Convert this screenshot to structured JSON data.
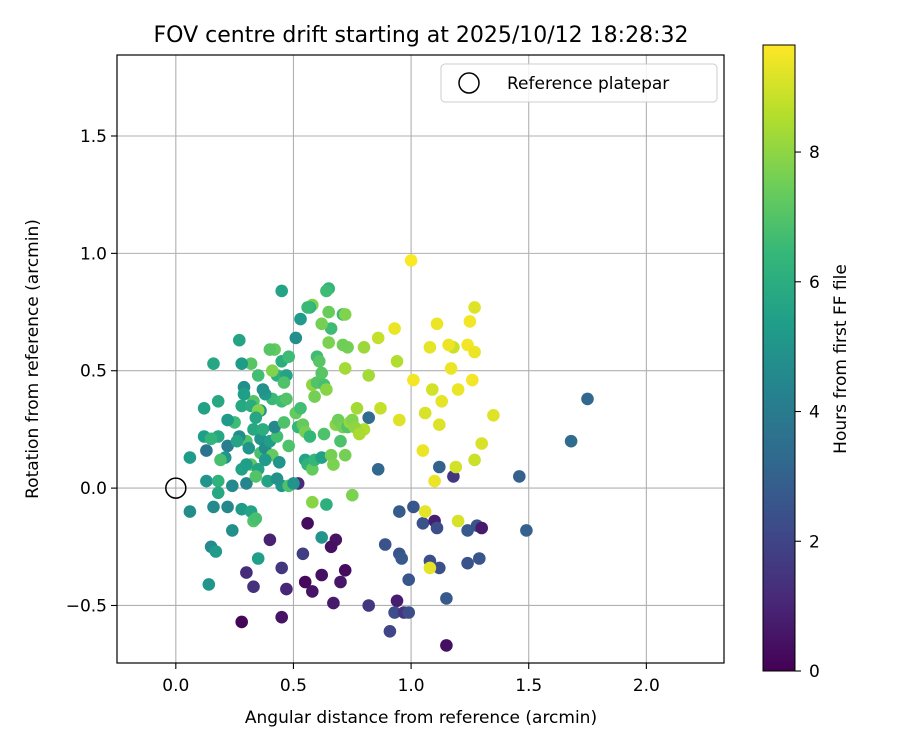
{
  "chart_data": {
    "type": "scatter",
    "title": "FOV centre drift starting at 2025/10/12 18:28:32",
    "xlabel": "Angular distance from reference (arcmin)",
    "ylabel": "Rotation from reference (arcmin)",
    "xlim": [
      -0.25,
      2.33
    ],
    "ylim": [
      -0.745,
      1.845
    ],
    "xticks": [
      0.0,
      0.5,
      1.0,
      1.5,
      2.0
    ],
    "xtick_labels": [
      "0.0",
      "0.5",
      "1.0",
      "1.5",
      "2.0"
    ],
    "yticks": [
      -0.5,
      0.0,
      0.5,
      1.0,
      1.5
    ],
    "ytick_labels": [
      "−0.5",
      "0.0",
      "0.5",
      "1.0",
      "1.5"
    ],
    "grid": true,
    "legend": {
      "location": "top-right",
      "entries": [
        "Reference platepar"
      ]
    },
    "reference_point": {
      "x": 0.0,
      "y": 0.0,
      "label": "Reference platepar"
    },
    "colorbar": {
      "label": "Hours from first FF file",
      "range": [
        0,
        9.65
      ],
      "ticks": [
        0,
        2,
        4,
        6,
        8
      ],
      "tick_labels": [
        "0",
        "2",
        "4",
        "6",
        "8"
      ],
      "colormap": "viridis"
    },
    "colormap_stops": [
      "#440154",
      "#482878",
      "#3e4989",
      "#31688e",
      "#26828e",
      "#1f9e89",
      "#35b779",
      "#6ece58",
      "#b5de2b",
      "#fde725"
    ],
    "points": [
      [
        0.28,
        -0.57,
        0.1
      ],
      [
        0.45,
        -0.55,
        0.5
      ],
      [
        0.62,
        -0.37,
        0.4
      ],
      [
        0.68,
        -0.22,
        0.5
      ],
      [
        0.72,
        -0.35,
        0.3
      ],
      [
        0.7,
        -0.4,
        0.6
      ],
      [
        0.56,
        -0.15,
        0.3
      ],
      [
        0.55,
        -0.4,
        0.2
      ],
      [
        0.58,
        -0.44,
        0.5
      ],
      [
        0.66,
        -0.25,
        0.4
      ],
      [
        0.67,
        -0.49,
        0.7
      ],
      [
        0.47,
        -0.43,
        1.0
      ],
      [
        0.4,
        -0.22,
        0.9
      ],
      [
        0.33,
        -0.42,
        1.4
      ],
      [
        0.3,
        -0.36,
        1.2
      ],
      [
        0.45,
        -0.34,
        1.6
      ],
      [
        0.54,
        -0.28,
        1.8
      ],
      [
        0.52,
        0.02,
        1.2
      ],
      [
        0.82,
        -0.5,
        1.6
      ],
      [
        0.94,
        -0.48,
        0.8
      ],
      [
        0.91,
        -0.61,
        2.0
      ],
      [
        0.93,
        -0.53,
        2.3
      ],
      [
        0.97,
        -0.53,
        1.5
      ],
      [
        0.99,
        -0.53,
        2.3
      ],
      [
        0.89,
        -0.24,
        2.5
      ],
      [
        0.95,
        -0.28,
        2.6
      ],
      [
        0.96,
        -0.3,
        2.7
      ],
      [
        0.99,
        -0.39,
        2.6
      ],
      [
        0.95,
        -0.1,
        2.8
      ],
      [
        1.01,
        -0.08,
        2.6
      ],
      [
        1.05,
        -0.15,
        2.5
      ],
      [
        1.08,
        -0.31,
        2.4
      ],
      [
        1.1,
        -0.14,
        0.8
      ],
      [
        1.11,
        -0.17,
        2.3
      ],
      [
        1.12,
        -0.34,
        2.4
      ],
      [
        1.15,
        -0.47,
        2.7
      ],
      [
        1.15,
        -0.67,
        0.4
      ],
      [
        1.18,
        0.05,
        1.5
      ],
      [
        1.24,
        -0.18,
        2.7
      ],
      [
        1.24,
        -0.32,
        2.5
      ],
      [
        1.28,
        -0.16,
        2.5
      ],
      [
        1.3,
        -0.17,
        0.7
      ],
      [
        1.29,
        -0.3,
        2.6
      ],
      [
        1.46,
        0.05,
        3.0
      ],
      [
        1.49,
        -0.18,
        3.0
      ],
      [
        1.68,
        0.2,
        3.4
      ],
      [
        1.75,
        0.38,
        3.2
      ],
      [
        0.86,
        0.08,
        3.2
      ],
      [
        1.12,
        0.09,
        3.0
      ],
      [
        0.82,
        0.3,
        3.4
      ],
      [
        0.58,
        -0.06,
        7.9
      ],
      [
        0.64,
        -0.07,
        6.1
      ],
      [
        0.75,
        -0.03,
        7.7
      ],
      [
        1.06,
        -0.1,
        9.3
      ],
      [
        1.08,
        -0.34,
        9.3
      ],
      [
        1.2,
        -0.14,
        9.1
      ],
      [
        1.19,
        0.09,
        9.0
      ],
      [
        1.27,
        0.12,
        8.9
      ],
      [
        1.3,
        0.19,
        9.1
      ],
      [
        1.35,
        0.31,
        9.2
      ],
      [
        1.1,
        0.03,
        9.4
      ],
      [
        1.05,
        0.16,
        9.4
      ],
      [
        1.09,
        0.42,
        9.0
      ],
      [
        1.13,
        0.37,
        9.3
      ],
      [
        1.17,
        0.51,
        9.4
      ],
      [
        1.18,
        0.6,
        8.9
      ],
      [
        1.2,
        0.42,
        9.4
      ],
      [
        1.24,
        0.61,
        9.5
      ],
      [
        1.26,
        0.46,
        9.5
      ],
      [
        1.27,
        0.58,
        9.4
      ],
      [
        1.25,
        0.71,
        9.5
      ],
      [
        1.27,
        0.77,
        9.2
      ],
      [
        1.08,
        0.6,
        9.3
      ],
      [
        1.11,
        0.7,
        9.4
      ],
      [
        1.16,
        0.61,
        9.4
      ],
      [
        1.01,
        0.46,
        9.5
      ],
      [
        1.06,
        0.32,
        9.1
      ],
      [
        1.12,
        0.27,
        9.2
      ],
      [
        0.95,
        0.29,
        9.2
      ],
      [
        0.93,
        0.68,
        9.4
      ],
      [
        1.0,
        0.97,
        9.6
      ],
      [
        0.94,
        0.54,
        8.5
      ],
      [
        0.86,
        0.64,
        8.8
      ],
      [
        0.87,
        0.34,
        8.8
      ],
      [
        0.82,
        0.48,
        8.3
      ],
      [
        0.8,
        0.25,
        8.5
      ],
      [
        0.8,
        0.6,
        8.2
      ],
      [
        0.77,
        0.34,
        8.3
      ],
      [
        0.73,
        0.6,
        7.6
      ],
      [
        0.72,
        0.51,
        8.3
      ],
      [
        0.71,
        0.61,
        7.5
      ],
      [
        0.71,
        0.74,
        6.5
      ],
      [
        0.72,
        0.74,
        7.8
      ],
      [
        0.66,
        0.68,
        6.6
      ],
      [
        0.65,
        0.75,
        7.4
      ],
      [
        0.62,
        0.7,
        7.6
      ],
      [
        0.65,
        0.85,
        6.3
      ],
      [
        0.64,
        0.84,
        6.6
      ],
      [
        0.58,
        0.78,
        7.7
      ],
      [
        0.57,
        0.77,
        6.2
      ],
      [
        0.56,
        0.77,
        6.5
      ],
      [
        0.53,
        0.72,
        5.2
      ],
      [
        0.45,
        0.84,
        5.6
      ],
      [
        0.51,
        0.64,
        4.8
      ],
      [
        0.45,
        0.54,
        6.0
      ],
      [
        0.48,
        0.56,
        6.6
      ],
      [
        0.42,
        0.59,
        7.3
      ],
      [
        0.4,
        0.59,
        7.1
      ],
      [
        0.43,
        0.48,
        6.1
      ],
      [
        0.47,
        0.48,
        5.6
      ],
      [
        0.41,
        0.5,
        7.8
      ],
      [
        0.46,
        0.45,
        6.9
      ],
      [
        0.41,
        0.38,
        6.5
      ],
      [
        0.38,
        0.4,
        5.2
      ],
      [
        0.37,
        0.42,
        4.9
      ],
      [
        0.35,
        0.48,
        6.7
      ],
      [
        0.36,
        0.33,
        5.0
      ],
      [
        0.32,
        0.53,
        7.1
      ],
      [
        0.33,
        0.37,
        7.0
      ],
      [
        0.28,
        0.53,
        5.3
      ],
      [
        0.27,
        0.63,
        5.6
      ],
      [
        0.29,
        0.43,
        4.8
      ],
      [
        0.28,
        0.35,
        5.8
      ],
      [
        0.29,
        0.4,
        5.4
      ],
      [
        0.32,
        0.35,
        5.9
      ],
      [
        0.35,
        0.33,
        7.8
      ],
      [
        0.34,
        0.3,
        5.7
      ],
      [
        0.3,
        0.2,
        6.9
      ],
      [
        0.27,
        0.22,
        4.7
      ],
      [
        0.25,
        0.28,
        6.6
      ],
      [
        0.22,
        0.29,
        5.2
      ],
      [
        0.22,
        0.18,
        4.1
      ],
      [
        0.21,
        0.13,
        5.0
      ],
      [
        0.19,
        0.12,
        6.8
      ],
      [
        0.18,
        0.22,
        5.8
      ],
      [
        0.16,
        0.53,
        5.7
      ],
      [
        0.18,
        0.37,
        5.8
      ],
      [
        0.12,
        0.34,
        5.5
      ],
      [
        0.12,
        0.22,
        5.4
      ],
      [
        0.13,
        0.16,
        3.7
      ],
      [
        0.15,
        0.21,
        6.3
      ],
      [
        0.06,
        0.13,
        5.3
      ],
      [
        0.06,
        -0.1,
        4.7
      ],
      [
        0.15,
        -0.25,
        4.6
      ],
      [
        0.17,
        -0.27,
        5.2
      ],
      [
        0.14,
        -0.41,
        5.0
      ],
      [
        0.13,
        0.03,
        5.0
      ],
      [
        0.16,
        -0.08,
        4.6
      ],
      [
        0.18,
        0.03,
        6.2
      ],
      [
        0.18,
        -0.02,
        5.8
      ],
      [
        0.22,
        -0.08,
        4.5
      ],
      [
        0.24,
        0.01,
        4.6
      ],
      [
        0.24,
        -0.18,
        4.8
      ],
      [
        0.28,
        -0.09,
        5.3
      ],
      [
        0.28,
        0.08,
        5.5
      ],
      [
        0.3,
        0.02,
        4.4
      ],
      [
        0.32,
        0.1,
        7.2
      ],
      [
        0.32,
        -0.1,
        5.6
      ],
      [
        0.33,
        -0.14,
        7.0
      ],
      [
        0.34,
        -0.13,
        6.8
      ],
      [
        0.35,
        -0.3,
        5.4
      ],
      [
        0.36,
        0.15,
        6.8
      ],
      [
        0.35,
        0.08,
        5.6
      ],
      [
        0.36,
        0.21,
        5.0
      ],
      [
        0.38,
        0.17,
        4.7
      ],
      [
        0.39,
        0.03,
        5.6
      ],
      [
        0.4,
        0.2,
        5.4
      ],
      [
        0.41,
        0.14,
        7.3
      ],
      [
        0.43,
        0.22,
        6.7
      ],
      [
        0.42,
        0.26,
        4.5
      ],
      [
        0.44,
        0.11,
        5.0
      ],
      [
        0.45,
        0.01,
        5.1
      ],
      [
        0.46,
        0.28,
        6.9
      ],
      [
        0.45,
        0.37,
        6.6
      ],
      [
        0.47,
        0.38,
        7.0
      ],
      [
        0.48,
        0.18,
        6.9
      ],
      [
        0.48,
        0.01,
        6.9
      ],
      [
        0.5,
        0.02,
        5.0
      ],
      [
        0.51,
        0.32,
        7.3
      ],
      [
        0.52,
        0.26,
        6.4
      ],
      [
        0.53,
        0.34,
        6.7
      ],
      [
        0.54,
        0.27,
        7.3
      ],
      [
        0.55,
        0.24,
        7.6
      ],
      [
        0.55,
        0.12,
        5.6
      ],
      [
        0.56,
        0.1,
        6.2
      ],
      [
        0.57,
        0.22,
        6.4
      ],
      [
        0.58,
        0.08,
        7.3
      ],
      [
        0.59,
        0.12,
        6.4
      ],
      [
        0.59,
        0.39,
        7.6
      ],
      [
        0.58,
        0.44,
        8.0
      ],
      [
        0.6,
        0.45,
        7.0
      ],
      [
        0.6,
        0.56,
        6.6
      ],
      [
        0.61,
        0.54,
        7.1
      ],
      [
        0.62,
        0.49,
        7.1
      ],
      [
        0.62,
        0.13,
        5.5
      ],
      [
        0.63,
        0.23,
        6.9
      ],
      [
        0.63,
        0.44,
        6.8
      ],
      [
        0.64,
        0.42,
        7.9
      ],
      [
        0.65,
        0.62,
        7.7
      ],
      [
        0.66,
        0.14,
        7.6
      ],
      [
        0.67,
        0.1,
        7.7
      ],
      [
        0.68,
        0.27,
        7.9
      ],
      [
        0.69,
        0.29,
        7.5
      ],
      [
        0.7,
        0.2,
        6.9
      ],
      [
        0.71,
        0.26,
        7.6
      ],
      [
        0.72,
        0.14,
        7.6
      ],
      [
        0.73,
        0.26,
        7.0
      ],
      [
        0.74,
        0.28,
        8.1
      ],
      [
        0.75,
        0.29,
        7.8
      ],
      [
        0.76,
        0.26,
        8.0
      ],
      [
        0.78,
        0.23,
        8.4
      ],
      [
        0.62,
        -0.21,
        5.0
      ],
      [
        0.3,
        0.1,
        5.4
      ],
      [
        0.26,
        0.2,
        5.6
      ],
      [
        0.33,
        0.25,
        5.8
      ],
      [
        0.37,
        0.25,
        6.0
      ],
      [
        0.38,
        0.12,
        5.2
      ],
      [
        0.31,
        0.17,
        5.0
      ],
      [
        0.34,
        0.05,
        7.0
      ],
      [
        0.43,
        0.04,
        4.9
      ]
    ]
  }
}
